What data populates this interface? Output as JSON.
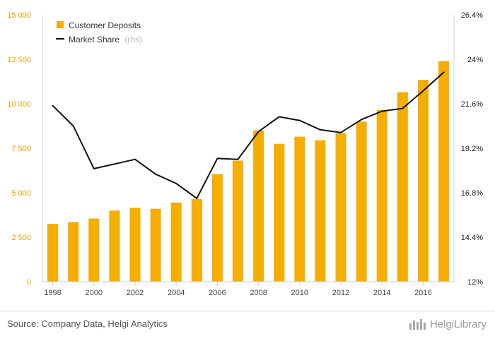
{
  "chart_data": {
    "type": "bar",
    "categories": [
      "1998",
      "1999",
      "2000",
      "2001",
      "2002",
      "2003",
      "2004",
      "2005",
      "2006",
      "2007",
      "2008",
      "2009",
      "2010",
      "2011",
      "2012",
      "2013",
      "2014",
      "2015",
      "2016",
      "2017"
    ],
    "series": [
      {
        "name": "Customer Deposits",
        "type": "bar",
        "axis": "left",
        "color": "#f5ae00",
        "values": [
          3250,
          3350,
          3550,
          4000,
          4150,
          4100,
          4450,
          4650,
          6050,
          6800,
          8500,
          7750,
          8150,
          7950,
          8350,
          9000,
          9650,
          10650,
          11350,
          12400
        ]
      },
      {
        "name": "Market Share",
        "type": "line",
        "axis": "right",
        "color": "#111111",
        "values": [
          21.5,
          20.4,
          18.1,
          18.35,
          18.6,
          17.8,
          17.3,
          16.5,
          18.65,
          18.6,
          20.1,
          20.9,
          20.7,
          20.2,
          20.05,
          20.75,
          21.2,
          21.35,
          22.3,
          23.3
        ]
      }
    ],
    "left_axis": {
      "ylim": [
        0,
        15000
      ],
      "ticks": [
        "0",
        "2 500",
        "5 000",
        "7 500",
        "10 000",
        "12 500",
        "15 000"
      ],
      "color": "#e8a300"
    },
    "right_axis": {
      "ylim": [
        12,
        26.4
      ],
      "ticks": [
        "12%",
        "14.4%",
        "16.8%",
        "19.2%",
        "21.6%",
        "24%",
        "26.4%"
      ]
    },
    "x_ticks": [
      "1998",
      "2000",
      "2002",
      "2004",
      "2006",
      "2008",
      "2010",
      "2012",
      "2014",
      "2016"
    ],
    "legend": {
      "placement": "top-left",
      "items": [
        {
          "label": "Customer Deposits",
          "suffix": ""
        },
        {
          "label": "Market Share",
          "suffix": "(rhs)"
        }
      ]
    },
    "grid": false
  },
  "footer": {
    "source": "Source: Company Data, Helgi Analytics",
    "brand": "HelgiLibrary"
  }
}
